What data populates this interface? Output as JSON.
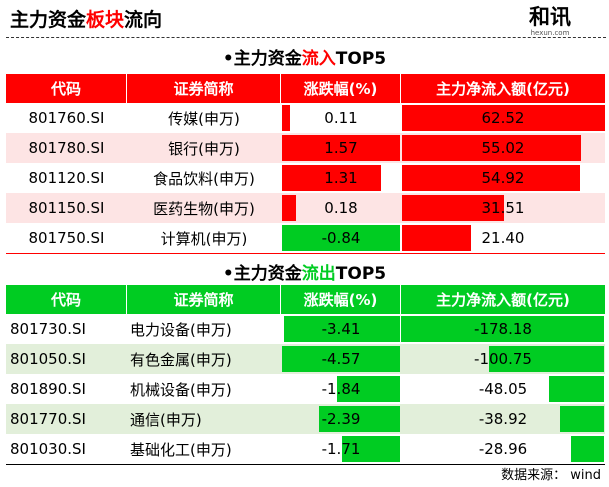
{
  "header": {
    "title_a": "主力资金",
    "title_b": "板块",
    "title_c": "流向",
    "logo_text": "和讯",
    "logo_sub": "hexun.com"
  },
  "colors": {
    "red": "#ff0000",
    "green": "#00cc22",
    "pink_row": "#fde4e4",
    "green_row": "#e2efda"
  },
  "inflow": {
    "title_a": "•主力资金",
    "title_b": "流入",
    "title_c": "TOP5",
    "columns": [
      "代码",
      "证券简称",
      "涨跌幅(%)",
      "主力净流入额(亿元)"
    ],
    "rows": [
      {
        "code": "801760.SI",
        "name": "传媒(申万)",
        "pct": "0.11",
        "net": "62.52"
      },
      {
        "code": "801780.SI",
        "name": "银行(申万)",
        "pct": "1.57",
        "net": "55.02"
      },
      {
        "code": "801120.SI",
        "name": "食品饮料(申万)",
        "pct": "1.31",
        "net": "54.92"
      },
      {
        "code": "801150.SI",
        "name": "医药生物(申万)",
        "pct": "0.18",
        "net": "31.51"
      },
      {
        "code": "801750.SI",
        "name": "计算机(申万)",
        "pct": "-0.84",
        "net": "21.40"
      }
    ]
  },
  "outflow": {
    "title_a": "•主力资金",
    "title_b": "流出",
    "title_c": "TOP5",
    "columns": [
      "代码",
      "证券简称",
      "涨跌幅(%)",
      "主力净流入额(亿元)"
    ],
    "rows": [
      {
        "code": "801730.SI",
        "name": "电力设备(申万)",
        "pct": "-3.41",
        "net": "-178.18"
      },
      {
        "code": "801050.SI",
        "name": "有色金属(申万)",
        "pct": "-4.57",
        "net": "-100.75"
      },
      {
        "code": "801890.SI",
        "name": "机械设备(申万)",
        "pct": "-1.84",
        "net": "-48.05"
      },
      {
        "code": "801770.SI",
        "name": "通信(申万)",
        "pct": "-2.39",
        "net": "-38.92"
      },
      {
        "code": "801030.SI",
        "name": "基础化工(申万)",
        "pct": "-1.71",
        "net": "-28.96"
      }
    ]
  },
  "source": "数据来源：  wind"
}
